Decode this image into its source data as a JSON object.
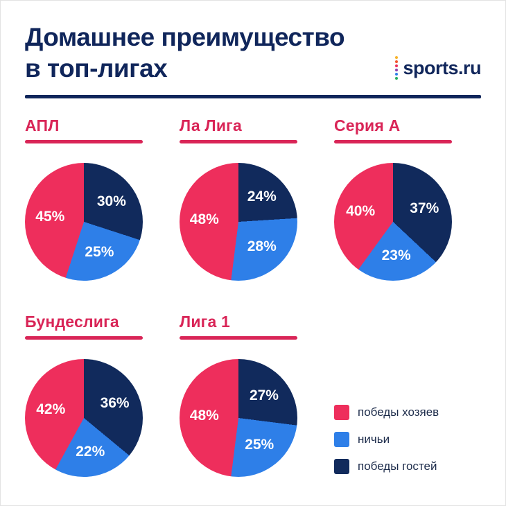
{
  "header": {
    "title_line1": "Домашнее преимущество",
    "title_line2": "в топ-лигах",
    "logo_text": "sports.ru",
    "logo_dot_colors": [
      "#F7B32B",
      "#F2552C",
      "#ED2D5C",
      "#8E44AD",
      "#2E7FE8",
      "#27AE60"
    ]
  },
  "colors": {
    "home": "#EE2E5C",
    "draw": "#2E7FE8",
    "away": "#112A5C",
    "title": "#10265B",
    "heading": "#D92557"
  },
  "legend": [
    {
      "label": "победы хозяев",
      "color_key": "home"
    },
    {
      "label": "ничьи",
      "color_key": "draw"
    },
    {
      "label": "победы гостей",
      "color_key": "away"
    }
  ],
  "chart_data": [
    {
      "type": "pie",
      "title": "АПЛ",
      "unit": "%",
      "slices": [
        {
          "name": "победы хозяев",
          "key": "home",
          "value": 45
        },
        {
          "name": "ничьи",
          "key": "draw",
          "value": 25
        },
        {
          "name": "победы гостей",
          "key": "away",
          "value": 30
        }
      ]
    },
    {
      "type": "pie",
      "title": "Ла Лига",
      "unit": "%",
      "slices": [
        {
          "name": "победы хозяев",
          "key": "home",
          "value": 48
        },
        {
          "name": "ничьи",
          "key": "draw",
          "value": 28
        },
        {
          "name": "победы гостей",
          "key": "away",
          "value": 24
        }
      ]
    },
    {
      "type": "pie",
      "title": "Серия А",
      "unit": "%",
      "slices": [
        {
          "name": "победы хозяев",
          "key": "home",
          "value": 40
        },
        {
          "name": "ничьи",
          "key": "draw",
          "value": 23
        },
        {
          "name": "победы гостей",
          "key": "away",
          "value": 37
        }
      ]
    },
    {
      "type": "pie",
      "title": "Бундеслига",
      "unit": "%",
      "slices": [
        {
          "name": "победы хозяев",
          "key": "home",
          "value": 42
        },
        {
          "name": "ничьи",
          "key": "draw",
          "value": 22
        },
        {
          "name": "победы гостей",
          "key": "away",
          "value": 36
        }
      ]
    },
    {
      "type": "pie",
      "title": "Лига 1",
      "unit": "%",
      "slices": [
        {
          "name": "победы хозяев",
          "key": "home",
          "value": 48
        },
        {
          "name": "ничьи",
          "key": "draw",
          "value": 25
        },
        {
          "name": "победы гостей",
          "key": "away",
          "value": 27
        }
      ]
    }
  ]
}
